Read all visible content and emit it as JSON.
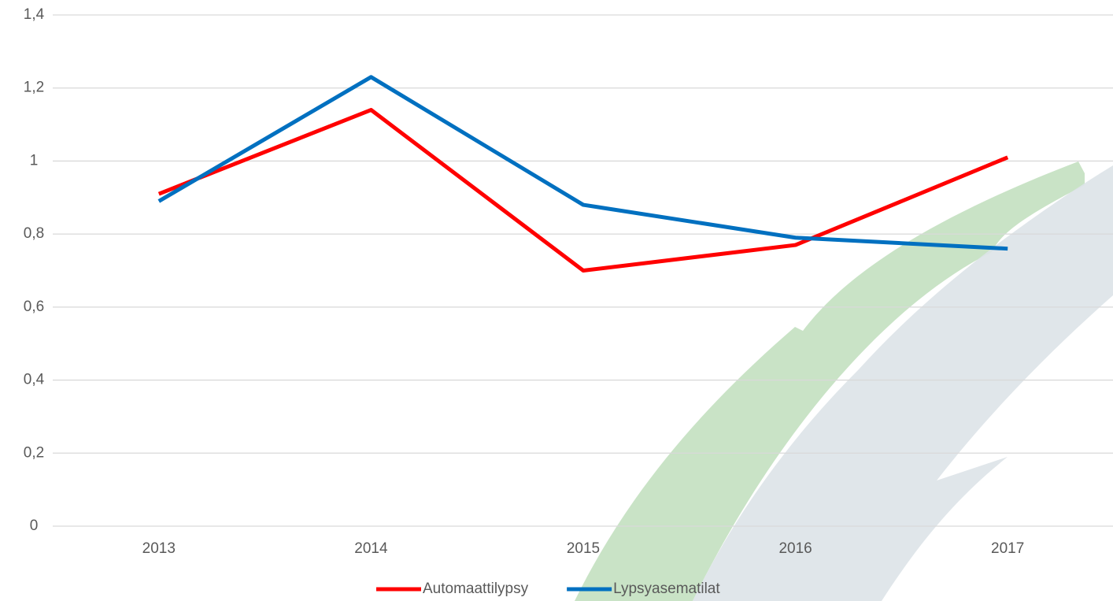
{
  "chart_data": {
    "type": "line",
    "categories": [
      "2013",
      "2014",
      "2015",
      "2016",
      "2017"
    ],
    "series": [
      {
        "name": "Automaattilypsy",
        "color": "#ff0000",
        "values": [
          0.91,
          1.14,
          0.7,
          0.77,
          1.01
        ]
      },
      {
        "name": "Lypsyasematilat",
        "color": "#0070c0",
        "values": [
          0.89,
          1.23,
          0.88,
          0.79,
          0.76
        ]
      }
    ],
    "ylim": [
      0,
      1.4
    ],
    "yticks": [
      0,
      {
        "value": 0.2,
        "label": "0,2"
      },
      {
        "value": 0.4,
        "label": "0,4"
      },
      {
        "value": 0.6,
        "label": "0,6"
      },
      {
        "value": 0.8,
        "label": "0,8"
      },
      1,
      {
        "value": 1.2,
        "label": "1,2"
      },
      {
        "value": 1.4,
        "label": "1,4"
      }
    ],
    "grid": true,
    "legend": "bottom"
  }
}
